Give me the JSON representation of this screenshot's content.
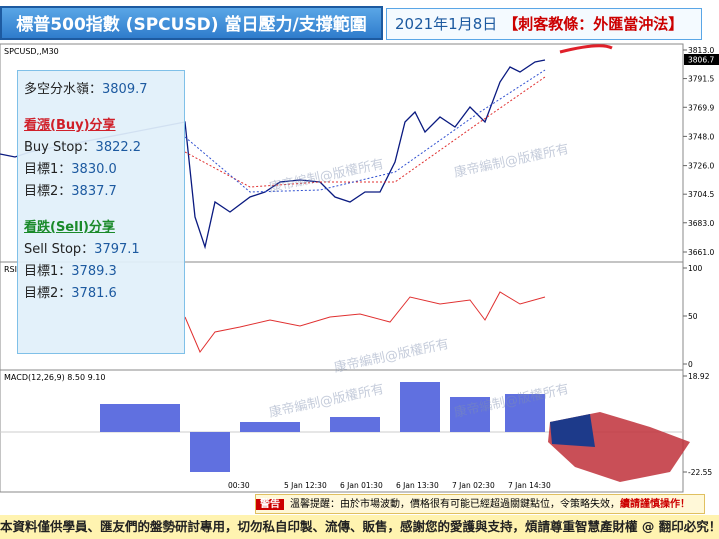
{
  "header": {
    "title": "標普500指數 (SPCUSD) 當日壓力/支撐範圍",
    "date": "2021年1月8日",
    "course": "【刺客教條：外匯當沖法】"
  },
  "chart": {
    "symbol": "SPCUSD,,M30",
    "current_price": "3806.7",
    "price_ticks": [
      3813.0,
      3791.5,
      3769.9,
      3748.0,
      3726.0,
      3704.5,
      3683.0,
      3661.0
    ],
    "price_tick_labels": [
      "3813.0",
      "3791.5",
      "3769.9",
      "3748.0",
      "3726.0",
      "3704.5",
      "3683.0",
      "3661.0"
    ],
    "rsi_label": "RSI",
    "rsi_ticks": [
      100,
      50,
      0
    ],
    "macd_label": "MACD(12,26,9) 8.50 9.10",
    "macd_ticks": [
      18.92,
      -22.55
    ],
    "time_labels": [
      "00:30",
      "5 Jan 12:30",
      "6 Jan 01:30",
      "6 Jan 13:30",
      "7 Jan 02:30",
      "7 Jan 14:30"
    ],
    "watermark": "康帝編制@版權所有"
  },
  "panel": {
    "pivot": "多空分水嶺：",
    "pivot_value": "3809.7",
    "buy_title": "看漲(Buy)分享",
    "buy_stop": "Buy Stop：",
    "buy_stop_value": "3822.2",
    "buy_t1": "目標1：",
    "buy_t1_value": "3830.0",
    "buy_t2": "目標2：",
    "buy_t2_value": "3837.7",
    "sell_title": "看跌(Sell)分享",
    "sell_stop": "Sell Stop：",
    "sell_stop_value": "3797.1",
    "sell_t1": "目標1：",
    "sell_t1_value": "3789.3",
    "sell_t2": "目標2：",
    "sell_t2_value": "3781.6"
  },
  "warning": {
    "tag": "警告",
    "text": "溫馨提醒：由於市場波動，價格很有可能已經超過關鍵點位，令策略失效，",
    "emphasis": "續請謹慎操作！"
  },
  "footer": "本資料僅供學員、匯友們的盤勢研討專用，切勿私自印製、流傳、販售，感謝您的愛護與支持，煩請尊重智慧產財權 @ 翻印必究！"
}
